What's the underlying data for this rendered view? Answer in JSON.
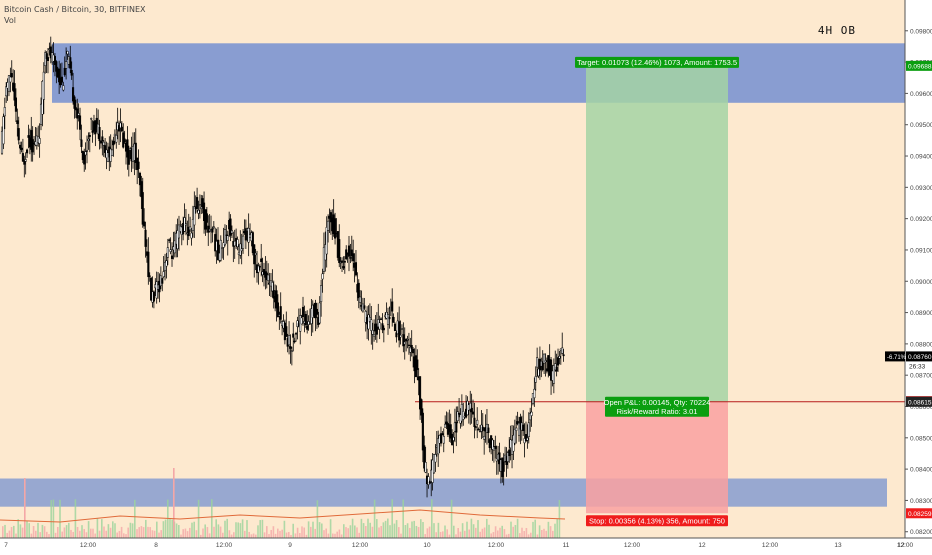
{
  "header": {
    "symbol_line": "Bitcoin Cash / Bitcoin, 30, BITFINEX",
    "volume_label": "Vol"
  },
  "annotation": "4H OB",
  "colors": {
    "background": "#fde9cf",
    "up_candle": "#ffffff",
    "down_candle": "#000000",
    "zone_blue": "#5b7fd1",
    "target_zone": "#a4d3a4",
    "stop_zone": "#f9a1a1",
    "target_tag": "#0b9e10",
    "stop_tag": "#ef1c1c",
    "entry_line": "#b71c1c"
  },
  "chart_data": {
    "type": "candlestick",
    "ylim": [
      0.0818,
      0.0986
    ],
    "y_ticks": [
      "0.09800",
      "0.09700",
      "0.09600",
      "0.09500",
      "0.09400",
      "0.09300",
      "0.09200",
      "0.09100",
      "0.09000",
      "0.08900",
      "0.08800",
      "0.08700",
      "0.08600",
      "0.08500",
      "0.08400",
      "0.08300",
      "0.08200"
    ],
    "x_ticks": [
      "7",
      "12:00",
      "8",
      "12:00",
      "9",
      "12:00",
      "10",
      "12:00",
      "11",
      "12:00",
      "12",
      "12:00",
      "13",
      "12:00",
      "12"
    ],
    "price_path": [
      0.094,
      0.0962,
      0.0966,
      0.0948,
      0.0937,
      0.0946,
      0.0943,
      0.0948,
      0.0974,
      0.0972,
      0.0968,
      0.0963,
      0.0972,
      0.096,
      0.0951,
      0.0938,
      0.0949,
      0.095,
      0.0947,
      0.094,
      0.0942,
      0.0952,
      0.0945,
      0.094,
      0.0942,
      0.093,
      0.0912,
      0.0895,
      0.0897,
      0.0902,
      0.0911,
      0.0909,
      0.0916,
      0.0918,
      0.0915,
      0.0924,
      0.0925,
      0.0917,
      0.0917,
      0.0908,
      0.0914,
      0.0918,
      0.0912,
      0.091,
      0.0916,
      0.0913,
      0.0904,
      0.0905,
      0.09,
      0.0896,
      0.089,
      0.0884,
      0.0879,
      0.0884,
      0.089,
      0.0885,
      0.0891,
      0.0889,
      0.0908,
      0.0922,
      0.0916,
      0.0905,
      0.0908,
      0.091,
      0.0898,
      0.089,
      0.0887,
      0.0884,
      0.0886,
      0.0887,
      0.0891,
      0.0885,
      0.0883,
      0.088,
      0.0875,
      0.0869,
      0.0841,
      0.0834,
      0.0846,
      0.085,
      0.0855,
      0.085,
      0.0856,
      0.0859,
      0.086,
      0.0856,
      0.0852,
      0.0853,
      0.0848,
      0.0844,
      0.084,
      0.0844,
      0.085,
      0.0855,
      0.085,
      0.0855,
      0.0872,
      0.0875,
      0.0874,
      0.087,
      0.0875,
      0.0876
    ],
    "zones": [
      {
        "name": "supply-zone",
        "low": 0.0957,
        "high": 0.0976
      },
      {
        "name": "demand-zone",
        "low": 0.0828,
        "high": 0.0837
      }
    ],
    "position": {
      "type": "long",
      "entry": 0.08615,
      "target": 0.09688,
      "stop": 0.08259,
      "target_label": "Target: 0.01073 (12.46%) 1073, Amount: 1753.5",
      "open_label": "Open P&L: 0.00145, Qty: 70224",
      "rr_label": "Risk/Reward Ratio: 3.01",
      "stop_label": "Stop: 0.00356 (4.13%) 356, Amount: 750"
    },
    "price_tags": [
      {
        "value": "0.09688",
        "color": "#0b9e10",
        "text_color": "#ffffff"
      },
      {
        "value": "0.08760",
        "color": "#000000",
        "text_color": "#ffffff",
        "prefix": "-6.71%",
        "sub": "26:33"
      },
      {
        "value": "0.08617",
        "color": "#b71c1c",
        "text_color": "#ffffff"
      },
      {
        "value": "0.08615",
        "color": "#222222",
        "text_color": "#ffffff"
      },
      {
        "value": "0.08259",
        "color": "#ef1c1c",
        "text_color": "#ffffff"
      }
    ]
  }
}
